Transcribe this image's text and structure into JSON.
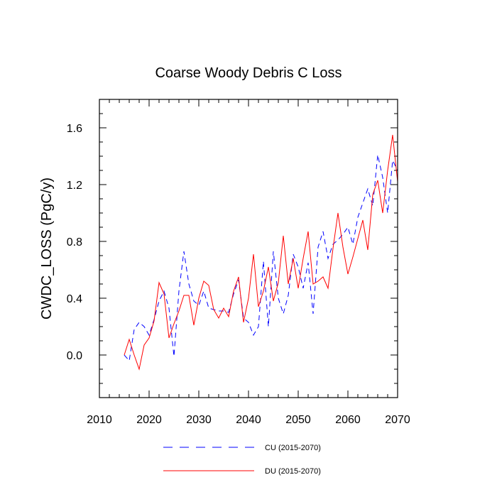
{
  "chart_data": {
    "type": "line",
    "title": "Coarse Woody Debris C Loss",
    "xlabel": "",
    "ylabel": "CWDC_LOSS  (PgC/y)",
    "xlim": [
      2010,
      2070
    ],
    "ylim": [
      -0.3,
      1.8
    ],
    "xticks": [
      2010,
      2020,
      2030,
      2040,
      2050,
      2060,
      2070
    ],
    "yticks": [
      0.0,
      0.4,
      0.8,
      1.2,
      1.6
    ],
    "ytick_labels": [
      "0.0",
      "0.4",
      "0.8",
      "1.2",
      "1.6"
    ],
    "x": [
      2015,
      2016,
      2017,
      2018,
      2019,
      2020,
      2021,
      2022,
      2023,
      2024,
      2025,
      2026,
      2027,
      2028,
      2029,
      2030,
      2031,
      2032,
      2033,
      2034,
      2035,
      2036,
      2037,
      2038,
      2039,
      2040,
      2041,
      2042,
      2043,
      2044,
      2045,
      2046,
      2047,
      2048,
      2049,
      2050,
      2051,
      2052,
      2053,
      2054,
      2055,
      2056,
      2057,
      2058,
      2059,
      2060,
      2061,
      2062,
      2063,
      2064,
      2065,
      2066,
      2067,
      2068,
      2069,
      2070
    ],
    "series": [
      {
        "name": "CU (2015-2070)",
        "color": "#0000ff",
        "dash": "dashed",
        "values": [
          0.0,
          -0.04,
          0.18,
          0.23,
          0.2,
          0.14,
          0.25,
          0.38,
          0.45,
          0.33,
          -0.01,
          0.45,
          0.73,
          0.5,
          0.38,
          0.35,
          0.45,
          0.33,
          0.32,
          0.31,
          0.31,
          0.3,
          0.43,
          0.53,
          0.26,
          0.23,
          0.14,
          0.2,
          0.66,
          0.2,
          0.73,
          0.4,
          0.29,
          0.42,
          0.71,
          0.62,
          0.47,
          0.65,
          0.29,
          0.76,
          0.87,
          0.68,
          0.78,
          0.81,
          0.85,
          0.9,
          0.78,
          0.97,
          1.07,
          1.17,
          1.05,
          1.41,
          1.25,
          1.0,
          1.37,
          1.3
        ]
      },
      {
        "name": "DU (2015-2070)",
        "color": "#ff0000",
        "dash": "solid",
        "values": [
          0.0,
          0.11,
          0.0,
          -0.1,
          0.07,
          0.12,
          0.24,
          0.51,
          0.43,
          0.12,
          0.22,
          0.31,
          0.42,
          0.42,
          0.21,
          0.4,
          0.52,
          0.49,
          0.32,
          0.26,
          0.33,
          0.27,
          0.45,
          0.55,
          0.23,
          0.4,
          0.71,
          0.34,
          0.45,
          0.62,
          0.38,
          0.51,
          0.84,
          0.5,
          0.68,
          0.47,
          0.68,
          0.87,
          0.5,
          0.52,
          0.55,
          0.47,
          0.75,
          1.0,
          0.76,
          0.57,
          0.69,
          0.82,
          0.95,
          0.74,
          1.13,
          1.23,
          1.0,
          1.3,
          1.55,
          1.22
        ]
      }
    ]
  }
}
